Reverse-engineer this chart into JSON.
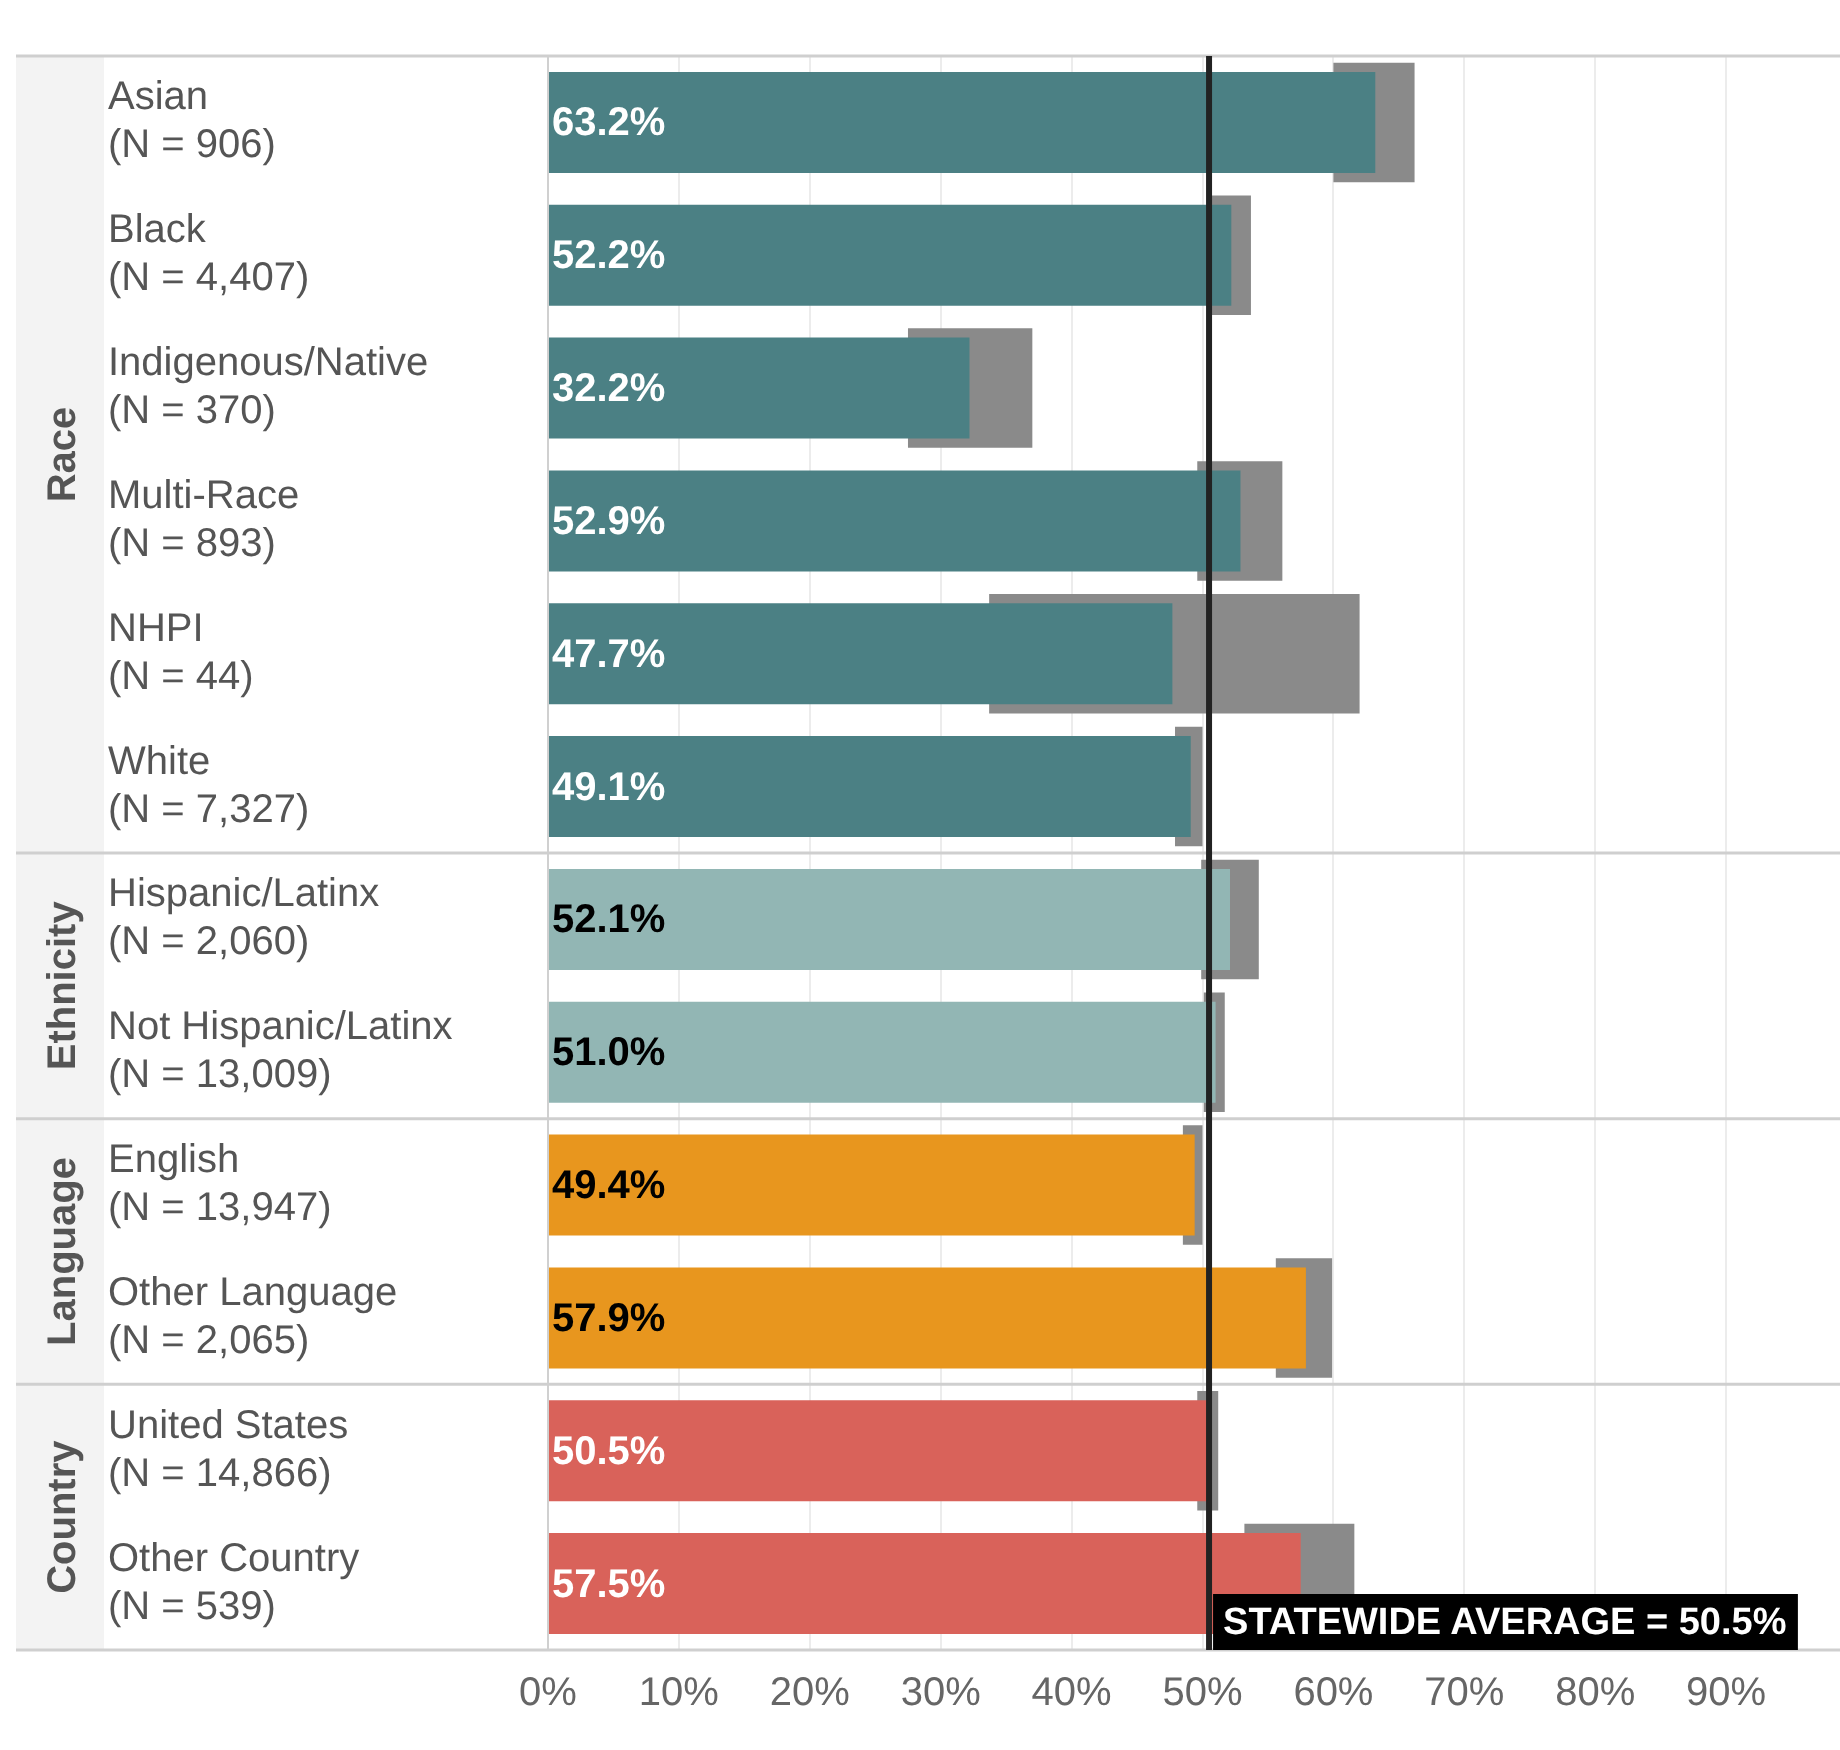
{
  "chart_data": {
    "type": "bar",
    "orientation": "horizontal",
    "categories": [
      "Asian\n(N = 906)",
      "Black\n(N = 4,407)",
      "Indigenous/Native\n(N = 370)",
      "Multi-Race\n(N = 893)",
      "NHPI\n(N = 44)",
      "White\n(N = 7,327)",
      "Hispanic/Latinx\n(N = 2,060)",
      "Not Hispanic/Latinx\n(N = 13,009)",
      "English\n(N = 13,947)",
      "Other Language\n(N = 2,065)",
      "United States\n(N = 14,866)",
      "Other Country\n(N = 539)"
    ],
    "series": [
      {
        "color": "#8a8a8a",
        "base": [
          60.0,
          50.6,
          27.5,
          49.6,
          33.7,
          47.9,
          49.9,
          50.1,
          48.5,
          55.6,
          49.6,
          53.2
        ],
        "values": [
          6.2,
          3.1,
          9.5,
          6.5,
          28.3,
          2.1,
          4.4,
          1.6,
          1.5,
          4.3,
          1.6,
          8.4
        ]
      },
      {
        "colors": [
          "#4b8084",
          "#4b8084",
          "#4b8084",
          "#4b8084",
          "#4b8084",
          "#4b8084",
          "#92b6b4",
          "#92b6b4",
          "#e8961e",
          "#e8961e",
          "#d9625a",
          "#d9625a"
        ],
        "values": [
          63.2,
          52.2,
          32.2,
          52.9,
          47.7,
          49.1,
          52.1,
          51.0,
          49.4,
          57.9,
          50.5,
          57.5
        ],
        "value_labels": [
          "63.2%",
          "52.2%",
          "32.2%",
          "52.9%",
          "47.7%",
          "49.1%",
          "52.1%",
          "51.0%",
          "49.4%",
          "57.9%",
          "50.5%",
          "57.5%"
        ]
      }
    ],
    "xlim": [
      0,
      98.7
    ],
    "xticks": [
      {
        "value": 0,
        "label": "0%"
      },
      {
        "value": 10,
        "label": "10%"
      },
      {
        "value": 20,
        "label": "20%"
      },
      {
        "value": 30,
        "label": "30%"
      },
      {
        "value": 40,
        "label": "40%"
      },
      {
        "value": 50,
        "label": "50%"
      },
      {
        "value": 60,
        "label": "60%"
      },
      {
        "value": 70,
        "label": "70%"
      },
      {
        "value": 80,
        "label": "80%"
      },
      {
        "value": 90,
        "label": "90%"
      }
    ],
    "grid": "x",
    "ref_lines": [
      {
        "axis": "x",
        "value": 50.5,
        "label": "STATEWIDE AVERAGE = 50.5%",
        "color": "#222222"
      }
    ],
    "annotations": [
      "Race",
      "Ethnicity",
      "Language",
      "Country"
    ]
  }
}
